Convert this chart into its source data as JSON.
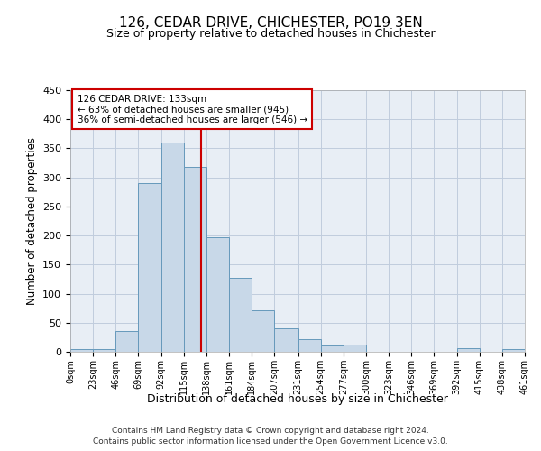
{
  "title": "126, CEDAR DRIVE, CHICHESTER, PO19 3EN",
  "subtitle": "Size of property relative to detached houses in Chichester",
  "xlabel": "Distribution of detached houses by size in Chichester",
  "ylabel": "Number of detached properties",
  "bar_color": "#c8d8e8",
  "bar_edge_color": "#6699bb",
  "bin_edges": [
    0,
    23,
    46,
    69,
    92,
    115,
    138,
    161,
    184,
    207,
    231,
    254,
    277,
    300,
    323,
    346,
    369,
    392,
    415,
    438,
    461
  ],
  "bar_heights": [
    5,
    5,
    36,
    290,
    360,
    318,
    197,
    127,
    71,
    41,
    22,
    11,
    12,
    0,
    0,
    0,
    0,
    6,
    0,
    4
  ],
  "property_size": 133,
  "vline_color": "#cc0000",
  "annotation_text": "126 CEDAR DRIVE: 133sqm\n← 63% of detached houses are smaller (945)\n36% of semi-detached houses are larger (546) →",
  "annotation_box_color": "#ffffff",
  "annotation_box_edge": "#cc0000",
  "ylim": [
    0,
    450
  ],
  "grid_color": "#c0ccdd",
  "background_color": "#e8eef5",
  "footnote1": "Contains HM Land Registry data © Crown copyright and database right 2024.",
  "footnote2": "Contains public sector information licensed under the Open Government Licence v3.0."
}
